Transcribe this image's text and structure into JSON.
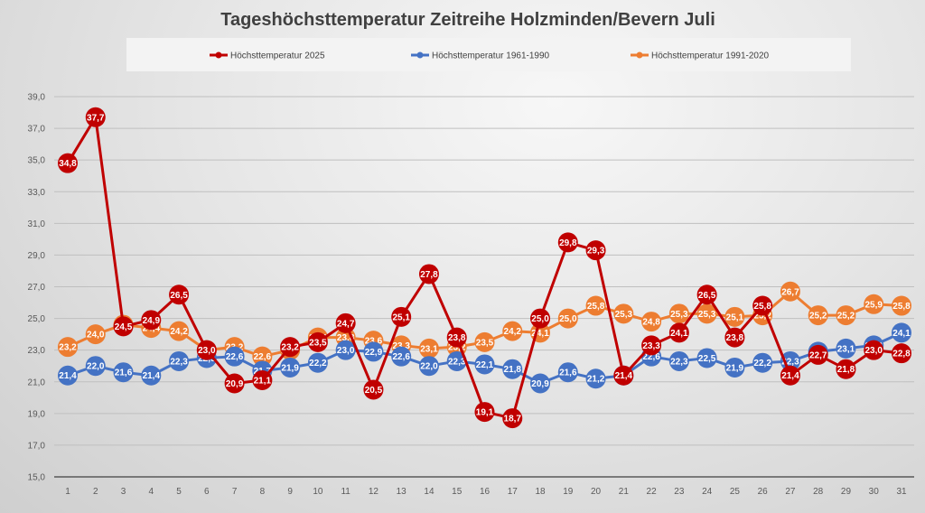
{
  "chart_data": {
    "type": "line",
    "title": "Tageshöchsttemperatur Zeitreihe Holzminden/Bevern Juli",
    "xlabel": "",
    "ylabel": "",
    "ylim": [
      15,
      39
    ],
    "yticks": [
      "15,0",
      "17,0",
      "19,0",
      "21,0",
      "23,0",
      "25,0",
      "27,0",
      "29,0",
      "31,0",
      "33,0",
      "35,0",
      "37,0",
      "39,0"
    ],
    "ytick_values": [
      15,
      17,
      19,
      21,
      23,
      25,
      27,
      29,
      31,
      33,
      35,
      37,
      39
    ],
    "grid": true,
    "legend_position": "top",
    "x": [
      "1",
      "2",
      "3",
      "4",
      "5",
      "6",
      "7",
      "8",
      "9",
      "10",
      "11",
      "12",
      "13",
      "14",
      "15",
      "16",
      "17",
      "18",
      "19",
      "20",
      "21",
      "22",
      "23",
      "24",
      "25",
      "26",
      "27",
      "28",
      "29",
      "30",
      "31"
    ],
    "series": [
      {
        "name": "Höchsttemperatur 2025",
        "color": "#c00000",
        "values": [
          34.8,
          37.7,
          24.5,
          24.9,
          26.5,
          23.0,
          20.9,
          21.1,
          23.2,
          23.5,
          24.7,
          20.5,
          25.1,
          27.8,
          23.8,
          19.1,
          18.7,
          25.0,
          29.8,
          29.3,
          21.4,
          23.3,
          24.1,
          26.5,
          23.8,
          25.8,
          21.4,
          22.7,
          21.8,
          23.0,
          22.8
        ]
      },
      {
        "name": "Höchsttemperatur 1961-1990",
        "color": "#4472c4",
        "values": [
          21.4,
          22.0,
          21.6,
          21.4,
          22.3,
          22.5,
          22.6,
          21.7,
          21.9,
          22.2,
          23.0,
          22.9,
          22.6,
          22.0,
          22.3,
          22.1,
          21.8,
          20.9,
          21.6,
          21.2,
          21.4,
          22.6,
          22.3,
          22.5,
          21.9,
          22.2,
          22.3,
          22.9,
          23.1,
          23.3,
          24.1
        ]
      },
      {
        "name": "Höchsttemperatur 1991-2020",
        "color": "#ed7d31",
        "values": [
          23.2,
          24.0,
          24.6,
          24.4,
          24.2,
          23.0,
          23.2,
          22.6,
          23.0,
          23.8,
          23.8,
          23.6,
          23.3,
          23.1,
          23.2,
          23.5,
          24.2,
          24.1,
          25.0,
          25.8,
          25.3,
          24.8,
          25.3,
          25.3,
          25.1,
          25.2,
          26.7,
          25.2,
          25.2,
          25.9,
          25.8
        ]
      }
    ],
    "draw_order": [
      2,
      1,
      0
    ]
  }
}
